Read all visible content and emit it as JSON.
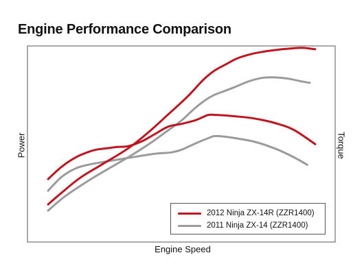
{
  "chart_data": {
    "type": "line",
    "title": "Engine Performance Comparison",
    "xlabel": "Engine Speed",
    "ylabel_left": "Power",
    "ylabel_right": "Torque",
    "xlim": [
      0,
      100
    ],
    "ylim": [
      0,
      100
    ],
    "grid": false,
    "axis_ticks": false,
    "legend_position": "bottom-right",
    "series": [
      {
        "name": "2012 Ninja ZX-14R (ZZR1400)",
        "color": "#c0141e",
        "curves": [
          {
            "label": "Power",
            "x": [
              0,
              5,
              12,
              20,
              30,
              38,
              45,
              52,
              58,
              62,
              67,
              71,
              76,
              80,
              85,
              90,
              95,
              100
            ],
            "y": [
              14.7,
              20.6,
              28.3,
              35.0,
              43.4,
              52.1,
              60.8,
              69.6,
              78.3,
              82.9,
              86.7,
              89.5,
              91.6,
              92.7,
              93.7,
              94.4,
              94.8,
              94.1
            ]
          },
          {
            "label": "Torque",
            "x": [
              0,
              5,
              10,
              14,
              18,
              22,
              26,
              30,
              35,
              40,
              45,
              50,
              55,
              58,
              60,
              63,
              70,
              77,
              85,
              92,
              100
            ],
            "y": [
              27.6,
              33.9,
              38.5,
              41.0,
              42.7,
              43.4,
              44.1,
              44.5,
              46.9,
              50.7,
              54.5,
              55.9,
              57.7,
              59.4,
              60.5,
              60.5,
              59.8,
              58.7,
              56.3,
              52.8,
              45.5
            ]
          }
        ]
      },
      {
        "name": "2011 Ninja ZX-14 (ZZR1400)",
        "color": "#9b9b9b",
        "curves": [
          {
            "label": "Power",
            "x": [
              0,
              6,
              14,
              22,
              30,
              38,
              44,
              50,
              55,
              59,
              62,
              66,
              70,
              75,
              80,
              85,
              90,
              95,
              98
            ],
            "y": [
              11.5,
              18.5,
              25.9,
              32.5,
              38.8,
              45.8,
              51.7,
              57.7,
              64.0,
              68.2,
              70.6,
              72.7,
              74.8,
              77.6,
              79.4,
              79.7,
              79.0,
              77.6,
              76.9
            ]
          },
          {
            "label": "Torque",
            "x": [
              0,
              5,
              10,
              15,
              22,
              30,
              40,
              46,
              50,
              55,
              60,
              63,
              70,
              78,
              86,
              92,
              97
            ],
            "y": [
              21.7,
              28.7,
              32.9,
              35.0,
              36.7,
              38.5,
              40.6,
              41.3,
              42.7,
              45.8,
              48.6,
              49.7,
              48.6,
              46.5,
              42.7,
              38.8,
              35.0
            ]
          }
        ]
      }
    ]
  }
}
